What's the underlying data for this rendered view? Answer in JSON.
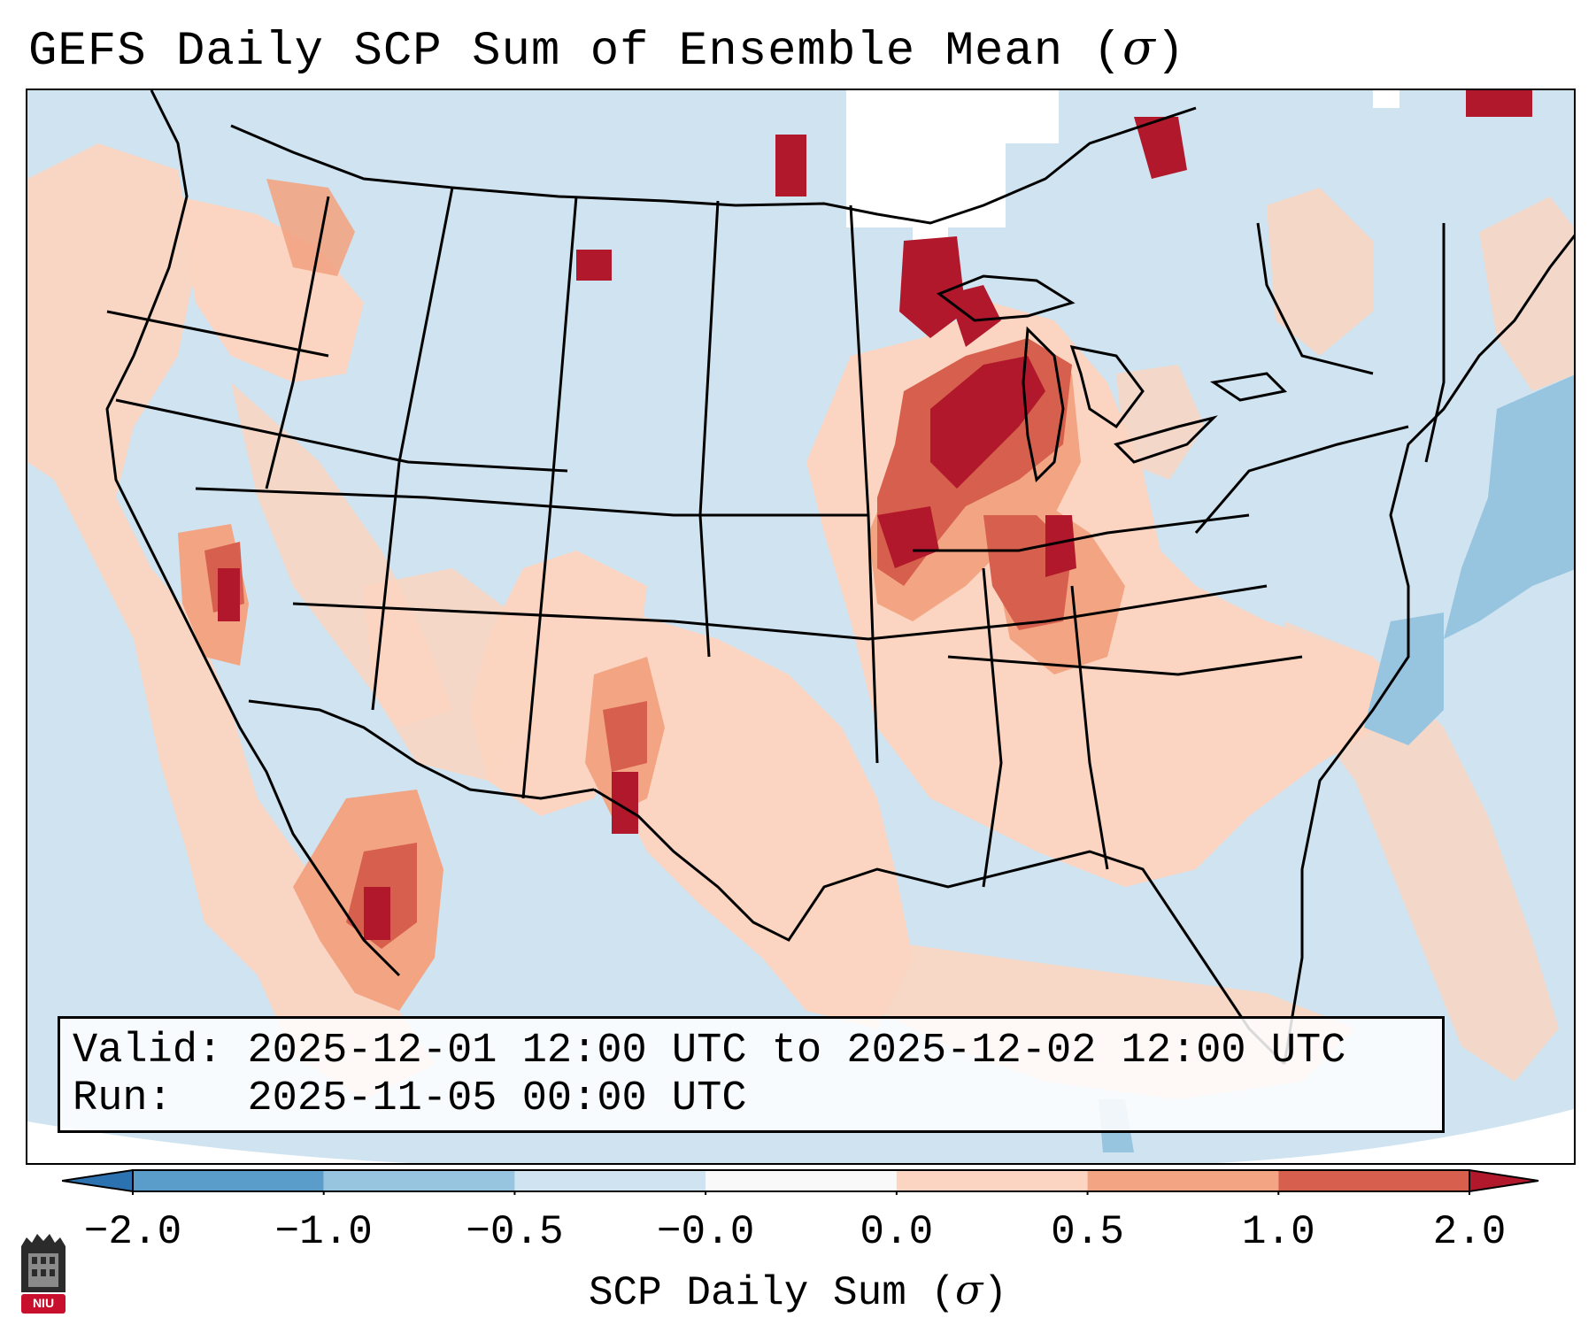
{
  "title": {
    "text": "GEFS Daily SCP Sum of Ensemble Mean (",
    "symbol": "σ",
    "close": ")"
  },
  "info_box": {
    "valid_label": "Valid:",
    "valid_value": "2025-12-01 12:00 UTC to 2025-12-02 12:00 UTC",
    "run_label": "Run:",
    "run_value": "2025-11-05 00:00 UTC"
  },
  "colorbar": {
    "ticks": [
      "−2.0",
      "−1.0",
      "−0.5",
      "−0.0",
      "0.0",
      "0.5",
      "1.0",
      "2.0"
    ],
    "colors": [
      "#2c72b1",
      "#5b9dca",
      "#97c4df",
      "#cfe3f0",
      "#f9f9f9",
      "#fbd5c1",
      "#f2a483",
      "#d75f4d",
      "#b2182b"
    ],
    "label_text": "SCP Daily Sum (",
    "label_symbol": "σ",
    "label_close": ")"
  },
  "map": {
    "background_color": "#cfe3f0",
    "hotspots": [
      {
        "region": "Upper Midwest / Great Lakes",
        "level": "2.0"
      },
      {
        "region": "Ohio Valley",
        "level": "1.0"
      },
      {
        "region": "Eastern New Mexico",
        "level": "2.0"
      },
      {
        "region": "Gulf of California / NW Mexico",
        "level": "1.0"
      },
      {
        "region": "Western Atlantic",
        "level": "−0.5"
      }
    ]
  },
  "logo": {
    "text": "NIU"
  }
}
